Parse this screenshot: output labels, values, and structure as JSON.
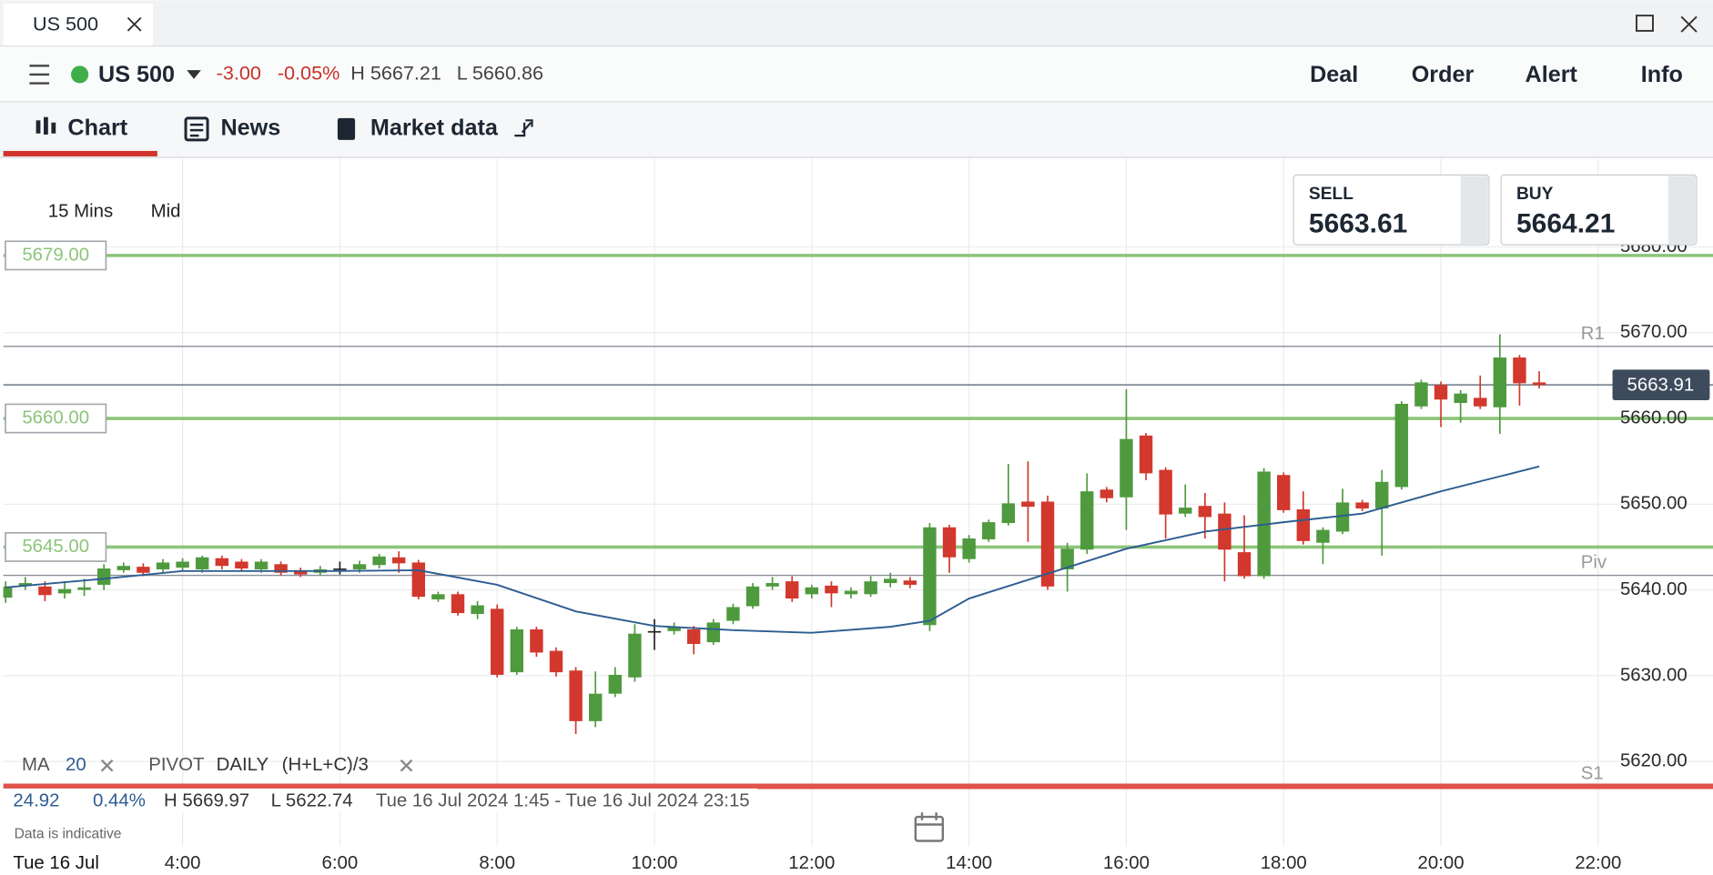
{
  "window": {
    "tab_title": "US 500"
  },
  "header": {
    "instrument": "US 500",
    "change": "-3.00",
    "change_pct": "-0.05%",
    "high": "H 5667.21",
    "low": "L 5660.86",
    "actions": [
      "Deal",
      "Order",
      "Alert",
      "Info"
    ]
  },
  "tabs": [
    "Chart",
    "News",
    "Market data"
  ],
  "toolbar": {
    "interval": "15 Mins",
    "price_type": "Mid"
  },
  "quote": {
    "sell_label": "SELL",
    "sell": "5663.61",
    "buy_label": "BUY",
    "buy": "5664.21"
  },
  "legend": {
    "ma_label": "MA",
    "ma_period": 20,
    "pivot_label": "PIVOT",
    "pivot_period": "DAILY",
    "pivot_formula": "(H+L+C)/3"
  },
  "stats": {
    "change": "24.92",
    "change_pct": "0.44%",
    "high": "H 5669.97",
    "low": "L 5622.74",
    "range": "Tue 16 Jul 2024 1:45 - Tue 16 Jul 2024 23:15"
  },
  "footnote": "Data is indicative",
  "chart_data": {
    "type": "candlestick",
    "date_label": "Tue 16 Jul",
    "up_color": "#4f9a3e",
    "down_color": "#d2382d",
    "x": [
      1.75,
      2,
      2.25,
      2.5,
      2.75,
      3,
      3.25,
      3.5,
      3.75,
      4,
      4.25,
      4.5,
      4.75,
      5,
      5.25,
      5.5,
      5.75,
      6,
      6.25,
      6.5,
      6.75,
      7,
      7.25,
      7.5,
      7.75,
      8,
      8.25,
      8.5,
      8.75,
      9,
      9.25,
      9.5,
      9.75,
      10,
      10.25,
      10.5,
      10.75,
      11,
      11.25,
      11.5,
      11.75,
      12,
      12.25,
      12.5,
      12.75,
      13,
      13.25,
      13.5,
      13.75,
      14,
      14.25,
      14.5,
      14.75,
      15,
      15.25,
      15.5,
      15.75,
      16,
      16.25,
      16.5,
      16.75,
      17,
      17.25,
      17.5,
      17.75,
      18,
      18.25,
      18.5,
      18.75,
      19,
      19.25,
      19.5,
      19.75,
      20,
      20.25,
      20.5,
      20.75,
      21,
      21.25
    ],
    "open": [
      5639.1,
      5640.5,
      5640.4,
      5639.6,
      5640,
      5640.6,
      5642.3,
      5642.7,
      5642.4,
      5642.6,
      5642.4,
      5643.7,
      5643.3,
      5642.4,
      5643,
      5642.3,
      5642,
      5642.5,
      5642.4,
      5642.9,
      5643.8,
      5643.2,
      5638.9,
      5639.5,
      5637.2,
      5637.8,
      5630.4,
      5635.4,
      5632.9,
      5630.6,
      5624.7,
      5627.9,
      5629.8,
      5635.2,
      5635.2,
      5635.4,
      5633.9,
      5636.4,
      5638.1,
      5640.4,
      5641,
      5639.5,
      5640.5,
      5639.5,
      5639.5,
      5640.8,
      5641.1,
      5635.9,
      5647.3,
      5643.6,
      5645.9,
      5647.8,
      5650.3,
      5650.3,
      5642.4,
      5644.7,
      5651.7,
      5650.8,
      5658,
      5654,
      5648.9,
      5649.8,
      5648.9,
      5644.4,
      5641.6,
      5653.4,
      5649.4,
      5645.5,
      5646.8,
      5650.2,
      5649.5,
      5652,
      5661.4,
      5663.9,
      5661.8,
      5662.4,
      5661.3,
      5667.1,
      5664.2
    ],
    "high": [
      5641,
      5641.5,
      5641,
      5641,
      5641.3,
      5643,
      5643.2,
      5643.1,
      5643.6,
      5643.7,
      5644,
      5644,
      5643.6,
      5643.6,
      5643.3,
      5642.6,
      5642.8,
      5643.3,
      5643.4,
      5644.2,
      5644.5,
      5643.5,
      5639.8,
      5639.8,
      5638.7,
      5638.3,
      5635.7,
      5635.7,
      5633.3,
      5631,
      5630.5,
      5631,
      5636,
      5636.6,
      5636.2,
      5635.8,
      5636.6,
      5638.4,
      5640.8,
      5641.5,
      5641.6,
      5640.6,
      5641,
      5640.3,
      5641.6,
      5642,
      5641.5,
      5647.8,
      5647.6,
      5646.4,
      5648.2,
      5654.7,
      5655,
      5651,
      5645.5,
      5653.6,
      5652,
      5663.4,
      5658.3,
      5654.3,
      5652.3,
      5651.3,
      5650.2,
      5648.7,
      5654.2,
      5653.7,
      5651.5,
      5647.3,
      5651.8,
      5650.5,
      5654,
      5662,
      5664.5,
      5664.3,
      5663.3,
      5665,
      5669.8,
      5667.4,
      5665.5
    ],
    "low": [
      5638.5,
      5640,
      5638.7,
      5639,
      5639.3,
      5640,
      5642,
      5641.6,
      5642,
      5642.2,
      5642,
      5642.4,
      5642.2,
      5642,
      5641.7,
      5641.5,
      5641.7,
      5641.8,
      5642,
      5642.5,
      5642,
      5638.9,
      5638.6,
      5637,
      5636.6,
      5629.8,
      5630.1,
      5632.2,
      5629.9,
      5623.2,
      5624,
      5627.5,
      5629.3,
      5633,
      5634.8,
      5632.5,
      5633.6,
      5636,
      5637.8,
      5640,
      5638.6,
      5639,
      5638,
      5639,
      5639.2,
      5640.3,
      5640.2,
      5635.2,
      5642,
      5643.2,
      5645.6,
      5647.5,
      5645.6,
      5640,
      5639.8,
      5644.2,
      5650.2,
      5647,
      5652.8,
      5646,
      5648.5,
      5646,
      5641,
      5641.3,
      5641.3,
      5649,
      5645.3,
      5643,
      5646.5,
      5649.2,
      5644,
      5651.7,
      5661.1,
      5659,
      5659.5,
      5661.1,
      5658.2,
      5661.5,
      5663.5
    ],
    "close": [
      5640.4,
      5640.8,
      5639.4,
      5640.1,
      5640.3,
      5642.5,
      5642.8,
      5642,
      5643.2,
      5643.3,
      5643.8,
      5642.8,
      5642.5,
      5643.3,
      5642,
      5641.8,
      5642.4,
      5642.5,
      5643,
      5643.9,
      5643.1,
      5639.2,
      5639.5,
      5637.3,
      5638.2,
      5630.1,
      5635.4,
      5632.7,
      5630.4,
      5624.7,
      5627.9,
      5630.1,
      5634.9,
      5635.2,
      5635.7,
      5633.7,
      5636.2,
      5638,
      5640.4,
      5640.8,
      5639,
      5640.3,
      5639.6,
      5639.9,
      5641,
      5641.3,
      5640.6,
      5647.3,
      5643.8,
      5646,
      5647.9,
      5650.1,
      5649.7,
      5640.4,
      5644.8,
      5651.5,
      5650.7,
      5657.6,
      5653.6,
      5648.8,
      5649.6,
      5648.5,
      5644.7,
      5641.6,
      5653.8,
      5649.3,
      5645.7,
      5647,
      5650.2,
      5649.5,
      5652.6,
      5661.7,
      5664.2,
      5662.2,
      5662.9,
      5661.4,
      5667.1,
      5664.1,
      5663.9
    ],
    "ma": {
      "color": "#2d5d91",
      "x": [
        1.75,
        3,
        4,
        5,
        6,
        7,
        8,
        9,
        10,
        11,
        12,
        13,
        13.5,
        14,
        15,
        16,
        17,
        18,
        19,
        20,
        21.25
      ],
      "values": [
        5640.3,
        5641.3,
        5642.2,
        5642.2,
        5642.2,
        5642.3,
        5640.6,
        5637.5,
        5635.8,
        5635.3,
        5635,
        5635.7,
        5636.4,
        5639,
        5641.9,
        5644.8,
        5646.8,
        5647.9,
        5648.9,
        5651.5,
        5654.4
      ]
    },
    "pivots": [
      {
        "name": "R1",
        "value": 5668.4
      },
      {
        "name": "Piv",
        "value": 5641.7
      },
      {
        "name": "S1",
        "value": 5617.1
      }
    ],
    "pivot_color": "#8a8f99",
    "s1_color": "#e0524a",
    "alerts": [
      {
        "value": 5679,
        "label": "5679.00"
      },
      {
        "value": 5660,
        "label": "5660.00"
      },
      {
        "value": 5645,
        "label": "5645.00"
      }
    ],
    "alert_color": "#8cc47a",
    "current_price": {
      "value": 5663.91,
      "label": "5663.91"
    },
    "xlim": [
      1.72,
      23.46
    ],
    "xticks": [
      {
        "value": 4,
        "label": "4:00"
      },
      {
        "value": 6,
        "label": "6:00"
      },
      {
        "value": 8,
        "label": "8:00"
      },
      {
        "value": 10,
        "label": "10:00"
      },
      {
        "value": 12,
        "label": "12:00"
      },
      {
        "value": 14,
        "label": "14:00"
      },
      {
        "value": 16,
        "label": "16:00"
      },
      {
        "value": 18,
        "label": "18:00"
      },
      {
        "value": 20,
        "label": "20:00"
      },
      {
        "value": 22,
        "label": "22:00"
      }
    ],
    "ylim": [
      5610.1,
      5690.3
    ],
    "yticks": [
      {
        "value": 5620,
        "label": "5620.00"
      },
      {
        "value": 5630,
        "label": "5630.00"
      },
      {
        "value": 5640,
        "label": "5640.00"
      },
      {
        "value": 5650,
        "label": "5650.00"
      },
      {
        "value": 5660,
        "label": "5660.00"
      },
      {
        "value": 5670,
        "label": "5670.00"
      },
      {
        "value": 5680,
        "label": "5680.00"
      }
    ],
    "grid": true
  }
}
